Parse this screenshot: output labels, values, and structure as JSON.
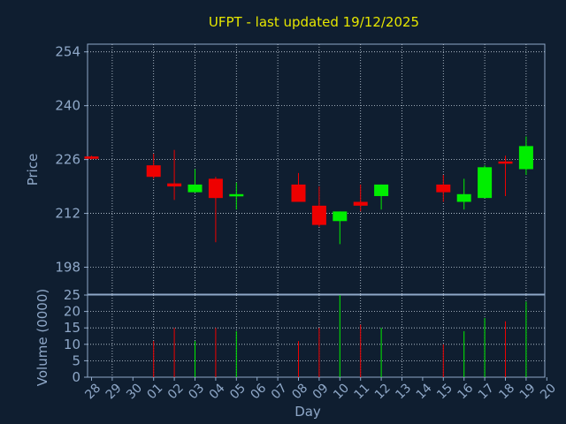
{
  "chart_data": {
    "type": "candlestick",
    "title": "UFPT - last updated 19/12/2025",
    "price_panel": {
      "ylabel": "Price",
      "ylim": [
        191,
        256
      ],
      "yticks": [
        198,
        212,
        226,
        240,
        254
      ],
      "grid": true
    },
    "volume_panel": {
      "ylabel": "Volume (0000)",
      "ylim": [
        0,
        25
      ],
      "yticks": [
        0,
        5,
        10,
        15,
        20,
        25
      ],
      "grid": true
    },
    "xlabel": "Day",
    "x_ticks": [
      "28",
      "29",
      "30",
      "01",
      "02",
      "03",
      "04",
      "05",
      "06",
      "07",
      "08",
      "09",
      "10",
      "11",
      "12",
      "13",
      "14",
      "15",
      "16",
      "17",
      "18",
      "19",
      "20"
    ],
    "candles": [
      {
        "day": "28",
        "open": 226.8,
        "close": 226.2,
        "high": 227.0,
        "low": 226.0,
        "volume": 0
      },
      {
        "day": "01",
        "open": 224.5,
        "close": 221.5,
        "high": 227.5,
        "low": 221.0,
        "volume": 11
      },
      {
        "day": "02",
        "open": 219.8,
        "close": 219.0,
        "high": 228.5,
        "low": 215.5,
        "volume": 15
      },
      {
        "day": "03",
        "open": 217.5,
        "close": 219.5,
        "high": 223.5,
        "low": 217.5,
        "volume": 11
      },
      {
        "day": "04",
        "open": 221.0,
        "close": 216.0,
        "high": 221.5,
        "low": 204.5,
        "volume": 15
      },
      {
        "day": "05",
        "open": 216.5,
        "close": 217.0,
        "high": 220.0,
        "low": 213.0,
        "volume": 14
      },
      {
        "day": "08",
        "open": 219.5,
        "close": 215.0,
        "high": 222.5,
        "low": 215.0,
        "volume": 11
      },
      {
        "day": "09",
        "open": 214.0,
        "close": 209.0,
        "high": 219.0,
        "low": 208.5,
        "volume": 15
      },
      {
        "day": "10",
        "open": 210.0,
        "close": 212.5,
        "high": 212.5,
        "low": 204.0,
        "volume": 25
      },
      {
        "day": "11",
        "open": 215.0,
        "close": 214.0,
        "high": 219.5,
        "low": 212.5,
        "volume": 16
      },
      {
        "day": "12",
        "open": 216.5,
        "close": 219.5,
        "high": 219.5,
        "low": 213.0,
        "volume": 15
      },
      {
        "day": "15",
        "open": 219.5,
        "close": 217.5,
        "high": 222.0,
        "low": 215.0,
        "volume": 10
      },
      {
        "day": "16",
        "open": 215.0,
        "close": 217.0,
        "high": 221.0,
        "low": 213.0,
        "volume": 14
      },
      {
        "day": "17",
        "open": 216.0,
        "close": 224.0,
        "high": 224.5,
        "low": 216.0,
        "volume": 18
      },
      {
        "day": "18",
        "open": 225.5,
        "close": 225.0,
        "high": 227.0,
        "low": 216.5,
        "volume": 17
      },
      {
        "day": "19",
        "open": 223.5,
        "close": 229.5,
        "high": 232.0,
        "low": 222.0,
        "volume": 23
      }
    ],
    "colors": {
      "background": "#0f1e30",
      "axis": "#8fa8c8",
      "grid": "#c8d4e0",
      "up": "#00ee00",
      "down": "#ee0000",
      "title": "#e6e600"
    }
  }
}
